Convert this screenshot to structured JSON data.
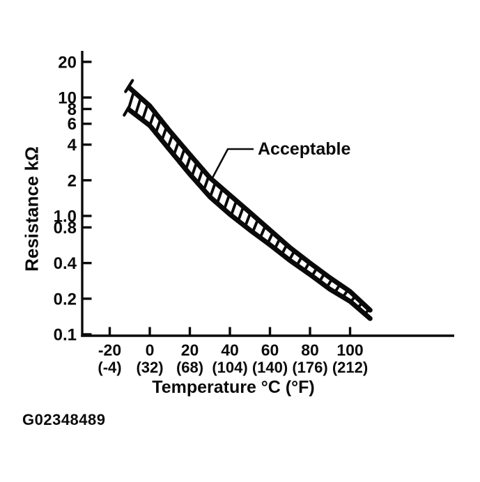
{
  "figure": {
    "code": "G02348489"
  },
  "colors": {
    "ink": "#0a0a0a",
    "background": "#ffffff"
  },
  "chart_data": {
    "type": "area",
    "title": "",
    "xlabel": "Temperature °C (°F)",
    "ylabel": "Resistance kΩ",
    "x_scale": "linear",
    "y_scale": "log",
    "xlim": [
      -33,
      119
    ],
    "ylim": [
      0.1,
      25
    ],
    "grid": false,
    "x_ticks": [
      {
        "value": -20,
        "c": "-20",
        "f": "(-4)"
      },
      {
        "value": 0,
        "c": "0",
        "f": "(32)"
      },
      {
        "value": 20,
        "c": "20",
        "f": "(68)"
      },
      {
        "value": 40,
        "c": "40",
        "f": "(104)"
      },
      {
        "value": 60,
        "c": "60",
        "f": "(140)"
      },
      {
        "value": 80,
        "c": "80",
        "f": "(176)"
      },
      {
        "value": 100,
        "c": "100",
        "f": "(212)"
      }
    ],
    "y_ticks": [
      {
        "value": 20,
        "label": "20"
      },
      {
        "value": 10,
        "label": "10"
      },
      {
        "value": 8,
        "label": "8"
      },
      {
        "value": 6,
        "label": "6"
      },
      {
        "value": 4,
        "label": "4"
      },
      {
        "value": 2,
        "label": "2"
      },
      {
        "value": 1.0,
        "label": "1.0"
      },
      {
        "value": 0.8,
        "label": "0.8"
      },
      {
        "value": 0.4,
        "label": "0.4"
      },
      {
        "value": 0.2,
        "label": "0.2"
      },
      {
        "value": 0.1,
        "label": "0.1"
      }
    ],
    "x": [
      -10,
      0,
      10,
      20,
      30,
      40,
      50,
      60,
      70,
      80,
      90,
      100,
      110
    ],
    "series": [
      {
        "name": "acceptable-upper-limit",
        "values": [
          12,
          8.5,
          5.2,
          3.3,
          2.1,
          1.5,
          1.07,
          0.76,
          0.54,
          0.4,
          0.3,
          0.23,
          0.16
        ]
      },
      {
        "name": "acceptable-lower-limit",
        "values": [
          7.8,
          5.8,
          3.6,
          2.25,
          1.45,
          1.03,
          0.76,
          0.57,
          0.42,
          0.32,
          0.24,
          0.19,
          0.136
        ]
      }
    ],
    "band_style": "hatched",
    "annotation": {
      "label": "Acceptable",
      "target_temp_c": 30,
      "target_k_ohm": 2.0
    }
  }
}
